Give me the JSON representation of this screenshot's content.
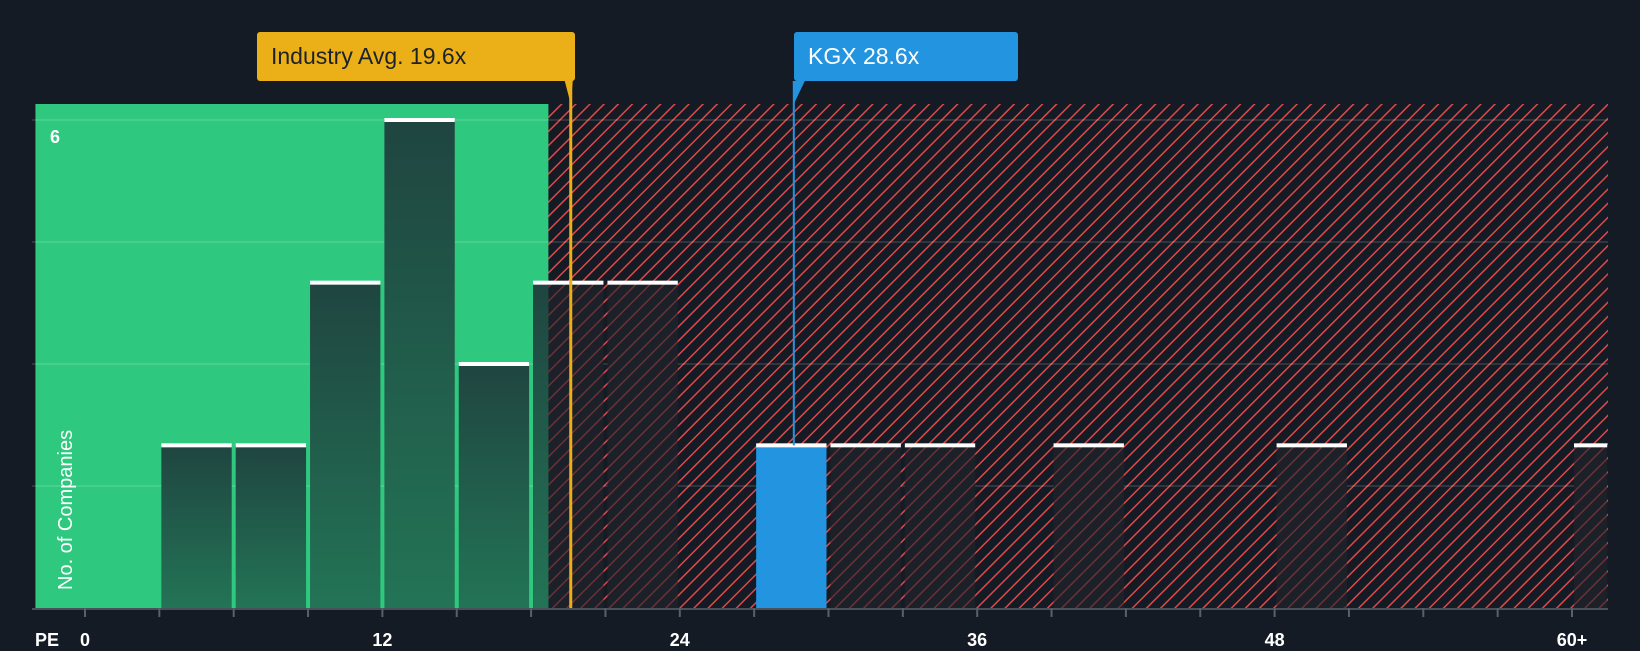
{
  "chart_data": {
    "type": "bar",
    "title": "",
    "xlabel": "PE",
    "ylabel": "No. of Companies",
    "x_tick_labels": [
      "0",
      "12",
      "24",
      "36",
      "48",
      "60+"
    ],
    "x_ticks": [
      0,
      12,
      24,
      36,
      48,
      60
    ],
    "y_tick_labels": [
      "6"
    ],
    "ylim": [
      0,
      6
    ],
    "xlim": [
      -2,
      61.5
    ],
    "bin_width": 3,
    "bins": [
      {
        "range": "3-6",
        "x0": 3,
        "x1": 6,
        "count": 2
      },
      {
        "range": "6-9",
        "x0": 6,
        "x1": 9,
        "count": 2
      },
      {
        "range": "9-12",
        "x0": 9,
        "x1": 12,
        "count": 4
      },
      {
        "range": "12-15",
        "x0": 12,
        "x1": 15,
        "count": 6
      },
      {
        "range": "15-18",
        "x0": 15,
        "x1": 18,
        "count": 3
      },
      {
        "range": "18-21",
        "x0": 18,
        "x1": 21,
        "count": 4
      },
      {
        "range": "21-24",
        "x0": 21,
        "x1": 24,
        "count": 4
      },
      {
        "range": "27-30",
        "x0": 27,
        "x1": 30,
        "count": 2,
        "highlight": true
      },
      {
        "range": "30-33",
        "x0": 30,
        "x1": 33,
        "count": 2
      },
      {
        "range": "33-36",
        "x0": 33,
        "x1": 36,
        "count": 2
      },
      {
        "range": "39-42",
        "x0": 39,
        "x1": 42,
        "count": 2
      },
      {
        "range": "48-51",
        "x0": 48,
        "x1": 51,
        "count": 2
      },
      {
        "range": "60+",
        "x0": 60,
        "x1": 61.5,
        "count": 2
      }
    ],
    "annotations": [
      {
        "label": "Industry Avg. 19.6x",
        "value": 19.6,
        "color": "#ebaf18"
      },
      {
        "label": "KGX 28.6x",
        "value": 28.6,
        "color": "#2394e0"
      }
    ],
    "regions": [
      {
        "name": "fair/undervalued",
        "from": -2,
        "to": 18.7,
        "color": "#2ec97f"
      },
      {
        "name": "overvalued",
        "from": 18.7,
        "to": 61.5,
        "color": "#e04848",
        "pattern": "diagonal-hatch"
      }
    ],
    "grid": true,
    "legend": "none"
  },
  "labels": {
    "industry_callout": "Industry Avg. 19.6x",
    "company_callout": "KGX 28.6x",
    "x_axis_name": "PE",
    "y_axis_name": "No. of Companies",
    "y_top_tick": "6"
  },
  "colors": {
    "background": "#151b24",
    "green_zone": "#2ec97f",
    "red_hatch": "#e04848",
    "industry": "#ebaf18",
    "company": "#2394e0",
    "bar_in_green": "#1f4a40",
    "bar_in_red": "#1c212b",
    "bar_cap": "#ffffff"
  }
}
